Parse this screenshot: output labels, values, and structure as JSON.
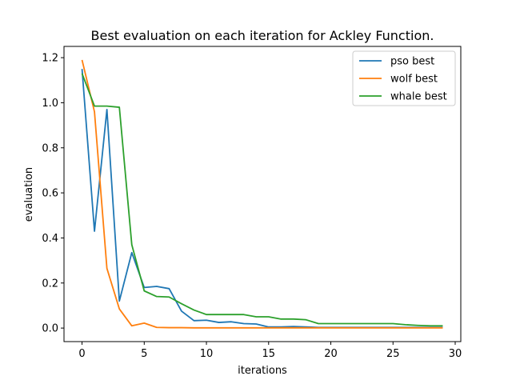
{
  "chart_data": {
    "type": "line",
    "title": "Best evaluation on each iteration for Ackley Function.",
    "xlabel": "iterations",
    "ylabel": "evaluation",
    "xlim": [
      -1.45,
      30.45
    ],
    "ylim": [
      -0.06,
      1.25
    ],
    "xticks": [
      0,
      5,
      10,
      15,
      20,
      25,
      30
    ],
    "yticks": [
      0.0,
      0.2,
      0.4,
      0.6,
      0.8,
      1.0,
      1.2
    ],
    "grid": false,
    "legend_position": "top-right",
    "x": [
      0,
      1,
      2,
      3,
      4,
      5,
      6,
      7,
      8,
      9,
      10,
      11,
      12,
      13,
      14,
      15,
      16,
      17,
      18,
      19,
      20,
      21,
      22,
      23,
      24,
      25,
      26,
      27,
      28,
      29
    ],
    "series": [
      {
        "name": "pso best",
        "color": "#1f77b4",
        "values": [
          1.15,
          0.43,
          0.97,
          0.12,
          0.335,
          0.18,
          0.185,
          0.175,
          0.075,
          0.033,
          0.035,
          0.025,
          0.028,
          0.02,
          0.018,
          0.005,
          0.005,
          0.007,
          0.005,
          0.003,
          0.003,
          0.003,
          0.003,
          0.003,
          0.003,
          0.003,
          0.003,
          0.003,
          0.003,
          0.003
        ]
      },
      {
        "name": "wolf best",
        "color": "#ff7f0e",
        "values": [
          1.19,
          0.96,
          0.265,
          0.085,
          0.01,
          0.022,
          0.003,
          0.002,
          0.002,
          0.001,
          0.001,
          0.001,
          0.001,
          0.001,
          0.001,
          0.001,
          0.001,
          0.001,
          0.001,
          0.001,
          0.001,
          0.001,
          0.001,
          0.001,
          0.001,
          0.001,
          0.001,
          0.001,
          0.001,
          0.001
        ]
      },
      {
        "name": "whale best",
        "color": "#2ca02c",
        "values": [
          1.13,
          0.985,
          0.985,
          0.98,
          0.37,
          0.165,
          0.14,
          0.138,
          0.108,
          0.08,
          0.06,
          0.06,
          0.06,
          0.06,
          0.05,
          0.05,
          0.04,
          0.04,
          0.037,
          0.02,
          0.02,
          0.02,
          0.02,
          0.02,
          0.02,
          0.02,
          0.015,
          0.012,
          0.01,
          0.01
        ]
      }
    ]
  }
}
